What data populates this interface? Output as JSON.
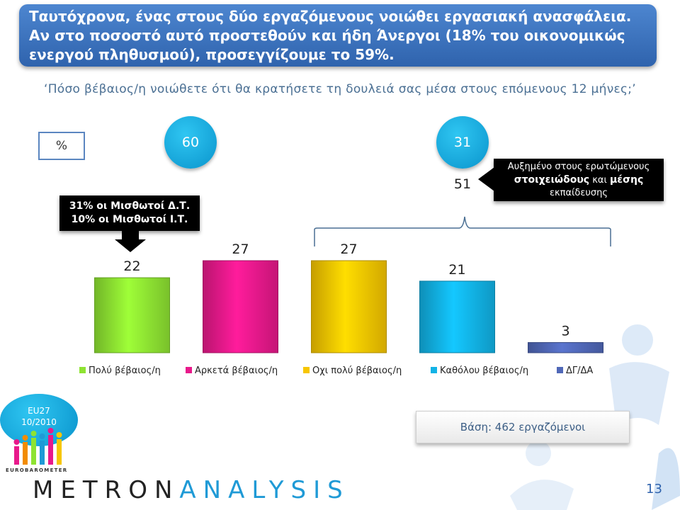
{
  "title": "Ταυτόχρονα, ένας στους δύο εργαζόμενους νοιώθει εργασιακή ανασφάλεια. Αν στο ποσοστό αυτό προστεθούν και ήδη Άνεργοι (18% του οικονομικώς ενεργού πληθυσμού), προσεγγίζουμε το 59%.",
  "question": "‘Πόσο βέβαιος/η νοιώθετε ότι θα κρατήσετε τη δουλειά σας μέσα στους επόμενους 12 μήνες;’",
  "unit_label": "%",
  "summary_circles": {
    "left": "60",
    "right": "31"
  },
  "grouped_value": "51",
  "callout_left": {
    "line1": "31% οι Μισθωτοί Δ.Τ.",
    "line2": "10% οι Μισθωτοί Ι.Τ."
  },
  "callout_right": {
    "line1": "Αυξημένο στους ερωτώμενους",
    "strong1": "στοιχειώδους",
    "mid": "και",
    "strong2": "μέσης",
    "line3": "εκπαίδευσης"
  },
  "base_note": "Βάση: 462 εργαζόμενοι",
  "page_number": "13",
  "eu_badge": {
    "line1": "EU27",
    "line2": "10/2010"
  },
  "logo": {
    "brand_top": "EUROBAROMETER",
    "word1": "METRON",
    "word2": "ANALYSIS"
  },
  "chart_data": {
    "type": "bar",
    "categories": [
      "Πολύ βέβαιος/η",
      "Αρκετά βέβαιος/η",
      "Οχι πολύ βέβαιος/η",
      "Καθόλου βέβαιος/η",
      "ΔΓ/ΔΑ"
    ],
    "values": [
      22,
      27,
      27,
      21,
      3
    ],
    "colors": [
      "#8ee332",
      "#e8198b",
      "#f7c600",
      "#12b3e6",
      "#5068b8"
    ],
    "ylim": [
      0,
      30
    ],
    "legend_position": "bottom",
    "grid": false
  }
}
